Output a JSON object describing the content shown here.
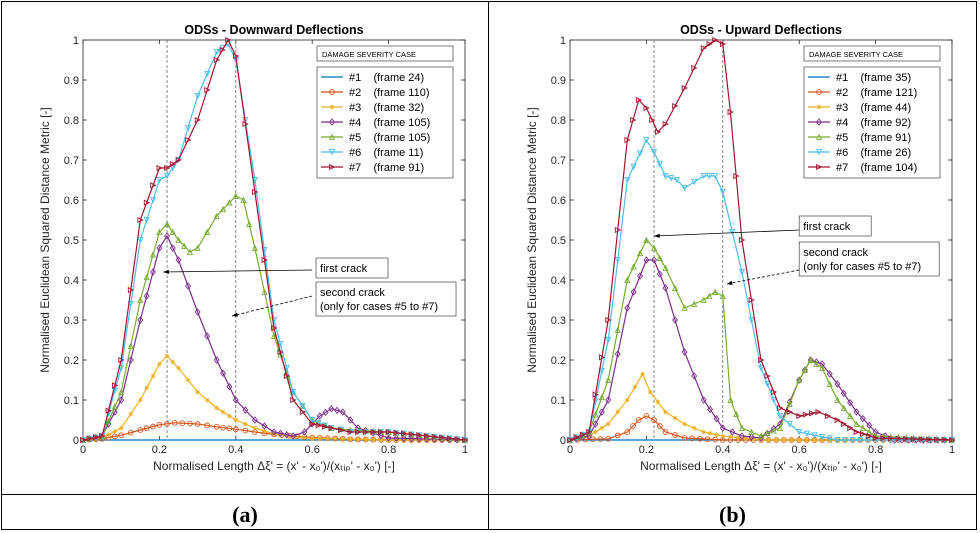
{
  "captions": [
    "(a)",
    "(b)"
  ],
  "chart_data": [
    {
      "type": "line",
      "title": "ODSs - Downward Deflections",
      "xlabel": "Normalised Length Δξ' = (x' - x₀')/(xₜᵢₚ' - x₀')   [-]",
      "ylabel": "Normalised Euclidean Squared Distance Metric   [-]",
      "xlim": [
        0,
        1
      ],
      "ylim": [
        0,
        1
      ],
      "xticks": [
        "0",
        "0.2",
        "0.4",
        "0.6",
        "0.8",
        "1"
      ],
      "yticks": [
        "0",
        "0.1",
        "0.2",
        "0.3",
        "0.4",
        "0.5",
        "0.6",
        "0.7",
        "0.8",
        "0.9",
        "1"
      ],
      "legend_title": "DAMAGE SEVERITY CASE",
      "legend_position": "top-right",
      "vertical_guides": [
        0.22,
        0.4
      ],
      "annotations": [
        {
          "lines": [
            "first crack"
          ],
          "box": [
            0.61,
            0.455
          ],
          "arrow_from": [
            0.6,
            0.425
          ],
          "arrow_to": [
            0.21,
            0.42
          ]
        },
        {
          "lines": [
            "second crack",
            "(only for cases #5 to #7)"
          ],
          "box": [
            0.61,
            0.395
          ],
          "arrow_from": [
            0.6,
            0.36
          ],
          "arrow_to": [
            0.39,
            0.31
          ]
        }
      ],
      "series": [
        {
          "name": "#1    (frame 24)",
          "color": "#0072BD",
          "marker": "none",
          "x": [
            0,
            0.5,
            1
          ],
          "y": [
            0,
            0,
            0
          ]
        },
        {
          "name": "#2    (frame 110)",
          "color": "#D95319",
          "marker": "o",
          "x": [
            0,
            0.05,
            0.1,
            0.15,
            0.2,
            0.24,
            0.3,
            0.35,
            0.4,
            0.45,
            0.5,
            0.6,
            0.7,
            0.8,
            1
          ],
          "y": [
            0,
            0.003,
            0.012,
            0.025,
            0.038,
            0.043,
            0.04,
            0.033,
            0.027,
            0.02,
            0.014,
            0.006,
            0.002,
            0,
            0
          ]
        },
        {
          "name": "#3    (frame 32)",
          "color": "#EDB120",
          "marker": "*",
          "x": [
            0,
            0.05,
            0.1,
            0.15,
            0.2,
            0.22,
            0.25,
            0.3,
            0.35,
            0.4,
            0.45,
            0.5,
            0.55,
            0.6,
            0.7,
            0.8,
            1
          ],
          "y": [
            0,
            0.005,
            0.03,
            0.1,
            0.19,
            0.21,
            0.18,
            0.12,
            0.08,
            0.05,
            0.03,
            0.015,
            0.008,
            0.004,
            0.002,
            0,
            0
          ]
        },
        {
          "name": "#4    (frame 105)",
          "color": "#7E2F8E",
          "marker": "d",
          "x": [
            0,
            0.05,
            0.1,
            0.15,
            0.2,
            0.22,
            0.25,
            0.3,
            0.35,
            0.4,
            0.45,
            0.5,
            0.55,
            0.58,
            0.62,
            0.65,
            0.68,
            0.72,
            0.8,
            1
          ],
          "y": [
            0,
            0.01,
            0.1,
            0.3,
            0.48,
            0.51,
            0.45,
            0.32,
            0.2,
            0.1,
            0.05,
            0.02,
            0.01,
            0.02,
            0.06,
            0.078,
            0.07,
            0.03,
            0.005,
            0
          ]
        },
        {
          "name": "#5    (frame 105)",
          "color": "#77AC30",
          "marker": "^",
          "x": [
            0,
            0.05,
            0.1,
            0.15,
            0.2,
            0.22,
            0.25,
            0.28,
            0.3,
            0.35,
            0.4,
            0.42,
            0.45,
            0.5,
            0.55,
            0.6,
            0.65,
            0.7,
            0.8,
            0.9,
            1
          ],
          "y": [
            0,
            0.01,
            0.12,
            0.35,
            0.52,
            0.54,
            0.5,
            0.47,
            0.48,
            0.56,
            0.61,
            0.6,
            0.48,
            0.26,
            0.12,
            0.05,
            0.03,
            0.025,
            0.02,
            0.01,
            0
          ]
        },
        {
          "name": "#6    (frame 11)",
          "color": "#4DBEEE",
          "marker": "v",
          "x": [
            0,
            0.05,
            0.1,
            0.15,
            0.2,
            0.22,
            0.25,
            0.3,
            0.35,
            0.38,
            0.4,
            0.45,
            0.5,
            0.55,
            0.6,
            0.65,
            0.7,
            0.8,
            0.9,
            1
          ],
          "y": [
            0,
            0.01,
            0.18,
            0.5,
            0.65,
            0.66,
            0.7,
            0.86,
            0.97,
            0.99,
            0.95,
            0.65,
            0.3,
            0.12,
            0.05,
            0.03,
            0.02,
            0.02,
            0.01,
            0
          ]
        },
        {
          "name": "#7    (frame 91)",
          "color": "#A2142F",
          "marker": ">",
          "x": [
            0,
            0.05,
            0.1,
            0.15,
            0.2,
            0.22,
            0.25,
            0.3,
            0.35,
            0.38,
            0.4,
            0.45,
            0.5,
            0.55,
            0.6,
            0.65,
            0.7,
            0.8,
            0.9,
            1
          ],
          "y": [
            0,
            0.01,
            0.2,
            0.55,
            0.68,
            0.68,
            0.7,
            0.8,
            0.95,
            1.0,
            0.96,
            0.62,
            0.28,
            0.1,
            0.04,
            0.03,
            0.02,
            0.02,
            0.01,
            0
          ]
        }
      ]
    },
    {
      "type": "line",
      "title": "ODSs - Upward Deflections",
      "xlabel": "Normalised Length Δξ' = (x' - x₀')/(xₜᵢₚ' - x₀')   [-]",
      "ylabel": "Normalised Euclidean Squared Distance Metric   [-]",
      "xlim": [
        0,
        1
      ],
      "ylim": [
        0,
        1
      ],
      "xticks": [
        "0",
        "0.2",
        "0.4",
        "0.6",
        "0.8",
        "1"
      ],
      "yticks": [
        "0",
        "0.1",
        "0.2",
        "0.3",
        "0.4",
        "0.5",
        "0.6",
        "0.7",
        "0.8",
        "0.9",
        "1"
      ],
      "legend_title": "DAMAGE SEVERITY CASE",
      "legend_position": "top-right",
      "vertical_guides": [
        0.22,
        0.4
      ],
      "annotations": [
        {
          "lines": [
            "first crack"
          ],
          "box": [
            0.6,
            0.56
          ],
          "arrow_from": [
            0.6,
            0.525
          ],
          "arrow_to": [
            0.22,
            0.51
          ]
        },
        {
          "lines": [
            "second crack",
            "(only for cases #5 to #7)"
          ],
          "box": [
            0.6,
            0.495
          ],
          "arrow_from": [
            0.6,
            0.425
          ],
          "arrow_to": [
            0.41,
            0.39
          ]
        }
      ],
      "series": [
        {
          "name": "#1    (frame 35)",
          "color": "#0072BD",
          "marker": "none",
          "x": [
            0,
            0.5,
            1
          ],
          "y": [
            0,
            0,
            0
          ]
        },
        {
          "name": "#2    (frame 121)",
          "color": "#D95319",
          "marker": "o",
          "x": [
            0,
            0.1,
            0.15,
            0.18,
            0.2,
            0.22,
            0.25,
            0.3,
            0.4,
            1
          ],
          "y": [
            0,
            0.003,
            0.02,
            0.05,
            0.06,
            0.05,
            0.02,
            0.005,
            0,
            0
          ]
        },
        {
          "name": "#3    (frame 44)",
          "color": "#EDB120",
          "marker": "*",
          "x": [
            0,
            0.05,
            0.1,
            0.15,
            0.19,
            0.21,
            0.25,
            0.3,
            0.35,
            0.4,
            0.5,
            1
          ],
          "y": [
            0,
            0.01,
            0.04,
            0.1,
            0.165,
            0.12,
            0.07,
            0.04,
            0.02,
            0.01,
            0,
            0
          ]
        },
        {
          "name": "#4    (frame 92)",
          "color": "#7E2F8E",
          "marker": "d",
          "x": [
            0,
            0.05,
            0.1,
            0.15,
            0.2,
            0.22,
            0.25,
            0.3,
            0.35,
            0.4,
            0.45,
            0.5,
            0.55,
            0.6,
            0.63,
            0.66,
            0.7,
            0.75,
            0.8,
            0.85,
            1
          ],
          "y": [
            0,
            0.01,
            0.1,
            0.33,
            0.45,
            0.45,
            0.38,
            0.22,
            0.1,
            0.03,
            0.01,
            0.005,
            0.04,
            0.15,
            0.2,
            0.19,
            0.14,
            0.07,
            0.02,
            0,
            0
          ]
        },
        {
          "name": "#5    (frame 91)",
          "color": "#77AC30",
          "marker": "^",
          "x": [
            0,
            0.05,
            0.1,
            0.15,
            0.2,
            0.22,
            0.25,
            0.3,
            0.35,
            0.38,
            0.4,
            0.42,
            0.45,
            0.5,
            0.55,
            0.6,
            0.63,
            0.66,
            0.7,
            0.75,
            0.8,
            1
          ],
          "y": [
            0,
            0.02,
            0.15,
            0.4,
            0.5,
            0.48,
            0.43,
            0.33,
            0.35,
            0.37,
            0.36,
            0.1,
            0.03,
            0.01,
            0.03,
            0.15,
            0.2,
            0.18,
            0.1,
            0.04,
            0.01,
            0
          ]
        },
        {
          "name": "#6    (frame 26)",
          "color": "#4DBEEE",
          "marker": "v",
          "x": [
            0,
            0.05,
            0.1,
            0.15,
            0.2,
            0.22,
            0.25,
            0.28,
            0.3,
            0.35,
            0.38,
            0.4,
            0.45,
            0.5,
            0.55,
            0.6,
            0.7,
            1
          ],
          "y": [
            0,
            0.02,
            0.25,
            0.65,
            0.75,
            0.72,
            0.66,
            0.65,
            0.63,
            0.66,
            0.66,
            0.62,
            0.42,
            0.18,
            0.06,
            0.02,
            0,
            0
          ]
        },
        {
          "name": "#7    (frame 104)",
          "color": "#A2142F",
          "marker": ">",
          "x": [
            0,
            0.05,
            0.1,
            0.15,
            0.18,
            0.2,
            0.23,
            0.25,
            0.3,
            0.35,
            0.38,
            0.4,
            0.42,
            0.45,
            0.5,
            0.55,
            0.6,
            0.65,
            0.7,
            0.75,
            0.8,
            1
          ],
          "y": [
            0,
            0.02,
            0.3,
            0.75,
            0.85,
            0.83,
            0.77,
            0.79,
            0.88,
            0.98,
            1.0,
            0.99,
            0.82,
            0.5,
            0.2,
            0.08,
            0.06,
            0.07,
            0.05,
            0.02,
            0.005,
            0
          ]
        }
      ]
    }
  ]
}
